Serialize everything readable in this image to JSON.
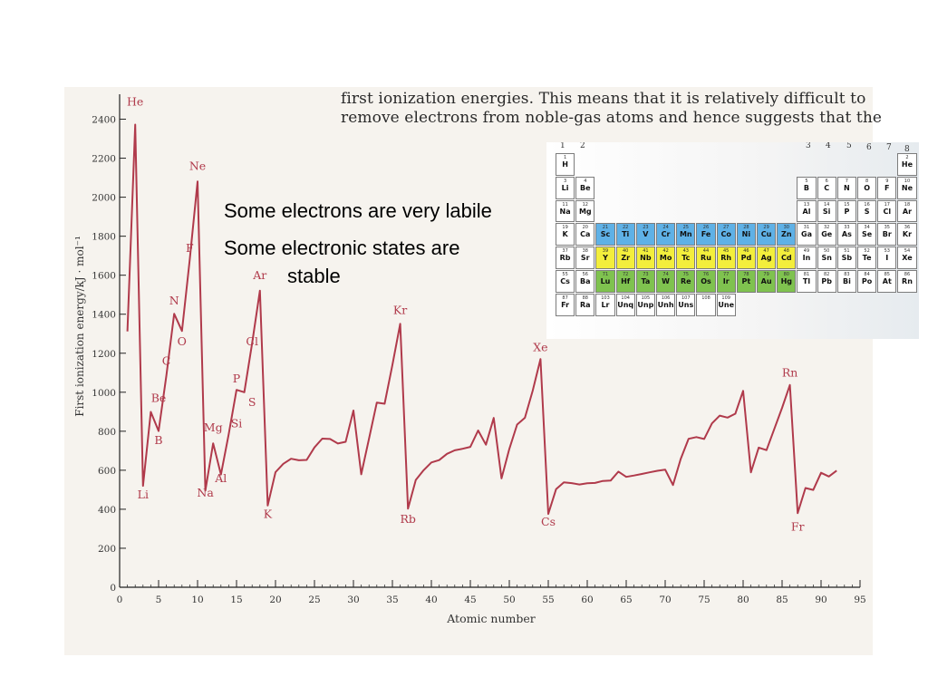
{
  "book_text": {
    "line1": "first ionization energies. This means that it is relatively difficult to",
    "line2": "remove electrons from noble-gas atoms and hence suggests that the"
  },
  "callouts": {
    "labile": "Some electrons are very labile",
    "stable_line1": "Some electronic states are",
    "stable_line2": "stable"
  },
  "chart_data": {
    "type": "line",
    "xlabel": "Atomic number",
    "ylabel": "First ionization energy/kJ · mol⁻¹",
    "xlim": [
      0,
      95
    ],
    "ylim": [
      0,
      2500
    ],
    "x_ticks": [
      0,
      5,
      10,
      15,
      20,
      25,
      30,
      35,
      40,
      45,
      50,
      55,
      60,
      65,
      70,
      75,
      80,
      85,
      90,
      95
    ],
    "y_ticks": [
      0,
      200,
      400,
      600,
      800,
      1000,
      1200,
      1400,
      1600,
      1800,
      2000,
      2200,
      2400
    ],
    "line_color": "#b03a4b",
    "series": [
      {
        "x": [
          1,
          2,
          3,
          4,
          5,
          6,
          7,
          8,
          9,
          10,
          11,
          12,
          13,
          14,
          15,
          16,
          17,
          18,
          19,
          20,
          21,
          22,
          23,
          24,
          25,
          26,
          27,
          28,
          29,
          30,
          31,
          32,
          33,
          34,
          35,
          36,
          37,
          38,
          39,
          40,
          41,
          42,
          43,
          44,
          45,
          46,
          47,
          48,
          49,
          50,
          51,
          52,
          53,
          54,
          55,
          56,
          57,
          58,
          59,
          60,
          61,
          62,
          63,
          64,
          65,
          66,
          67,
          68,
          69,
          70,
          71,
          72,
          73,
          74,
          75,
          76,
          77,
          78,
          79,
          80,
          81,
          82,
          83,
          84,
          85,
          86,
          87,
          88,
          89,
          90,
          91,
          92
        ],
        "values": [
          1312,
          2372,
          520,
          899,
          801,
          1086,
          1402,
          1314,
          1681,
          2081,
          496,
          738,
          578,
          786,
          1012,
          1000,
          1251,
          1521,
          419,
          590,
          633,
          659,
          651,
          653,
          717,
          762,
          760,
          737,
          746,
          906,
          579,
          762,
          947,
          941,
          1140,
          1351,
          403,
          550,
          600,
          640,
          652,
          684,
          702,
          710,
          720,
          804,
          731,
          868,
          558,
          709,
          834,
          869,
          1008,
          1170,
          376,
          503,
          538,
          534,
          527,
          533,
          535,
          545,
          547,
          593,
          566,
          573,
          581,
          589,
          597,
          603,
          524,
          659,
          761,
          770,
          760,
          840,
          880,
          870,
          890,
          1007,
          589,
          716,
          703,
          812,
          920,
          1037,
          380,
          509,
          499,
          587,
          568,
          598
        ]
      }
    ],
    "point_labels": [
      {
        "z": 1,
        "text": "He",
        "dx": 1,
        "y": 2470
      },
      {
        "z": 3,
        "text": "Li",
        "dx": 0,
        "y": 455
      },
      {
        "z": 4,
        "text": "Be",
        "dx": 1,
        "y": 950
      },
      {
        "z": 5,
        "text": "B",
        "dx": 0,
        "y": 735
      },
      {
        "z": 6,
        "text": "C",
        "dx": 0,
        "y": 1140
      },
      {
        "z": 7,
        "text": "N",
        "dx": 0,
        "y": 1450
      },
      {
        "z": 8,
        "text": "O",
        "dx": 0,
        "y": 1240
      },
      {
        "z": 9,
        "text": "F",
        "dx": 0,
        "y": 1720
      },
      {
        "z": 10,
        "text": "Ne",
        "dx": 0,
        "y": 2140
      },
      {
        "z": 11,
        "text": "Na",
        "dx": 0,
        "y": 465
      },
      {
        "z": 12,
        "text": "Mg",
        "dx": 0,
        "y": 800
      },
      {
        "z": 13,
        "text": "Al",
        "dx": 0,
        "y": 540
      },
      {
        "z": 14,
        "text": "Si",
        "dx": 1,
        "y": 820
      },
      {
        "z": 15,
        "text": "P",
        "dx": 0,
        "y": 1050
      },
      {
        "z": 16,
        "text": "S",
        "dx": 1,
        "y": 930
      },
      {
        "z": 17,
        "text": "Cl",
        "dx": 0,
        "y": 1240
      },
      {
        "z": 18,
        "text": "Ar",
        "dx": 0,
        "y": 1580
      },
      {
        "z": 19,
        "text": "K",
        "dx": 0,
        "y": 355
      },
      {
        "z": 36,
        "text": "Kr",
        "dx": 0,
        "y": 1400
      },
      {
        "z": 37,
        "text": "Rb",
        "dx": 0,
        "y": 330
      },
      {
        "z": 54,
        "text": "Xe",
        "dx": 0,
        "y": 1210
      },
      {
        "z": 55,
        "text": "Cs",
        "dx": 0,
        "y": 315
      },
      {
        "z": 86,
        "text": "Rn",
        "dx": 0,
        "y": 1080
      },
      {
        "z": 87,
        "text": "Fr",
        "dx": 0,
        "y": 290
      }
    ]
  },
  "periodic_table": {
    "group_numbers": [
      {
        "text": "1",
        "x": 15,
        "y": 7
      },
      {
        "text": "2",
        "x": 37,
        "y": 7
      },
      {
        "text": "3",
        "x": 286,
        "y": 7
      },
      {
        "text": "4",
        "x": 308,
        "y": 7
      },
      {
        "text": "5",
        "x": 331,
        "y": 7
      },
      {
        "text": "6",
        "x": 353,
        "y": 9
      },
      {
        "text": "7",
        "x": 375,
        "y": 9
      },
      {
        "text": "8",
        "x": 395,
        "y": 11
      }
    ],
    "rows": [
      [
        {
          "c": 0,
          "n": "1",
          "s": "H"
        },
        {
          "c": 17,
          "n": "2",
          "s": "He"
        }
      ],
      [
        {
          "c": 0,
          "n": "3",
          "s": "Li"
        },
        {
          "c": 1,
          "n": "4",
          "s": "Be"
        },
        {
          "c": 12,
          "n": "5",
          "s": "B"
        },
        {
          "c": 13,
          "n": "6",
          "s": "C"
        },
        {
          "c": 14,
          "n": "7",
          "s": "N"
        },
        {
          "c": 15,
          "n": "8",
          "s": "O"
        },
        {
          "c": 16,
          "n": "9",
          "s": "F"
        },
        {
          "c": 17,
          "n": "10",
          "s": "Ne"
        }
      ],
      [
        {
          "c": 0,
          "n": "11",
          "s": "Na"
        },
        {
          "c": 1,
          "n": "12",
          "s": "Mg"
        },
        {
          "c": 12,
          "n": "13",
          "s": "Al"
        },
        {
          "c": 13,
          "n": "14",
          "s": "Si"
        },
        {
          "c": 14,
          "n": "15",
          "s": "P"
        },
        {
          "c": 15,
          "n": "16",
          "s": "S"
        },
        {
          "c": 16,
          "n": "17",
          "s": "Cl"
        },
        {
          "c": 17,
          "n": "18",
          "s": "Ar"
        }
      ],
      [
        {
          "c": 0,
          "n": "19",
          "s": "K"
        },
        {
          "c": 1,
          "n": "20",
          "s": "Ca"
        },
        {
          "c": 2,
          "n": "21",
          "s": "Sc",
          "f": "#5fb1e6"
        },
        {
          "c": 3,
          "n": "22",
          "s": "Ti",
          "f": "#5fb1e6"
        },
        {
          "c": 4,
          "n": "23",
          "s": "V",
          "f": "#5fb1e6"
        },
        {
          "c": 5,
          "n": "24",
          "s": "Cr",
          "f": "#5fb1e6"
        },
        {
          "c": 6,
          "n": "25",
          "s": "Mn",
          "f": "#5fb1e6"
        },
        {
          "c": 7,
          "n": "26",
          "s": "Fe",
          "f": "#5fb1e6"
        },
        {
          "c": 8,
          "n": "27",
          "s": "Co",
          "f": "#5fb1e6"
        },
        {
          "c": 9,
          "n": "28",
          "s": "Ni",
          "f": "#5fb1e6"
        },
        {
          "c": 10,
          "n": "29",
          "s": "Cu",
          "f": "#5fb1e6"
        },
        {
          "c": 11,
          "n": "30",
          "s": "Zn",
          "f": "#5fb1e6"
        },
        {
          "c": 12,
          "n": "31",
          "s": "Ga"
        },
        {
          "c": 13,
          "n": "32",
          "s": "Ge"
        },
        {
          "c": 14,
          "n": "33",
          "s": "As"
        },
        {
          "c": 15,
          "n": "34",
          "s": "Se"
        },
        {
          "c": 16,
          "n": "35",
          "s": "Br"
        },
        {
          "c": 17,
          "n": "36",
          "s": "Kr"
        }
      ],
      [
        {
          "c": 0,
          "n": "37",
          "s": "Rb"
        },
        {
          "c": 1,
          "n": "38",
          "s": "Sr"
        },
        {
          "c": 2,
          "n": "39",
          "s": "Y",
          "f": "#f3ee3c"
        },
        {
          "c": 3,
          "n": "40",
          "s": "Zr",
          "f": "#f3ee3c"
        },
        {
          "c": 4,
          "n": "41",
          "s": "Nb",
          "f": "#f3ee3c"
        },
        {
          "c": 5,
          "n": "42",
          "s": "Mo",
          "f": "#f3ee3c"
        },
        {
          "c": 6,
          "n": "43",
          "s": "Tc",
          "f": "#f3ee3c"
        },
        {
          "c": 7,
          "n": "44",
          "s": "Ru",
          "f": "#f3ee3c"
        },
        {
          "c": 8,
          "n": "45",
          "s": "Rh",
          "f": "#f3ee3c"
        },
        {
          "c": 9,
          "n": "46",
          "s": "Pd",
          "f": "#f3ee3c"
        },
        {
          "c": 10,
          "n": "47",
          "s": "Ag",
          "f": "#f3ee3c"
        },
        {
          "c": 11,
          "n": "48",
          "s": "Cd",
          "f": "#f3ee3c"
        },
        {
          "c": 12,
          "n": "49",
          "s": "In"
        },
        {
          "c": 13,
          "n": "50",
          "s": "Sn"
        },
        {
          "c": 14,
          "n": "51",
          "s": "Sb"
        },
        {
          "c": 15,
          "n": "52",
          "s": "Te"
        },
        {
          "c": 16,
          "n": "53",
          "s": "I"
        },
        {
          "c": 17,
          "n": "54",
          "s": "Xe"
        }
      ],
      [
        {
          "c": 0,
          "n": "55",
          "s": "Cs"
        },
        {
          "c": 1,
          "n": "56",
          "s": "Ba"
        },
        {
          "c": 2,
          "n": "71",
          "s": "Lu",
          "f": "#7fc24f"
        },
        {
          "c": 3,
          "n": "72",
          "s": "Hf",
          "f": "#7fc24f"
        },
        {
          "c": 4,
          "n": "73",
          "s": "Ta",
          "f": "#7fc24f"
        },
        {
          "c": 5,
          "n": "74",
          "s": "W",
          "f": "#7fc24f"
        },
        {
          "c": 6,
          "n": "75",
          "s": "Re",
          "f": "#7fc24f"
        },
        {
          "c": 7,
          "n": "76",
          "s": "Os",
          "f": "#7fc24f"
        },
        {
          "c": 8,
          "n": "77",
          "s": "Ir",
          "f": "#7fc24f"
        },
        {
          "c": 9,
          "n": "78",
          "s": "Pt",
          "f": "#7fc24f"
        },
        {
          "c": 10,
          "n": "79",
          "s": "Au",
          "f": "#7fc24f"
        },
        {
          "c": 11,
          "n": "80",
          "s": "Hg",
          "f": "#7fc24f"
        },
        {
          "c": 12,
          "n": "81",
          "s": "Tl"
        },
        {
          "c": 13,
          "n": "82",
          "s": "Pb"
        },
        {
          "c": 14,
          "n": "83",
          "s": "Bi"
        },
        {
          "c": 15,
          "n": "84",
          "s": "Po"
        },
        {
          "c": 16,
          "n": "85",
          "s": "At"
        },
        {
          "c": 17,
          "n": "86",
          "s": "Rn"
        }
      ],
      [
        {
          "c": 0,
          "n": "87",
          "s": "Fr"
        },
        {
          "c": 1,
          "n": "88",
          "s": "Ra"
        },
        {
          "c": 2,
          "n": "103",
          "s": "Lr"
        },
        {
          "c": 3,
          "n": "104",
          "s": "Unq"
        },
        {
          "c": 4,
          "n": "105",
          "s": "Unp"
        },
        {
          "c": 5,
          "n": "106",
          "s": "Unh"
        },
        {
          "c": 6,
          "n": "107",
          "s": "Uns"
        },
        {
          "c": 7,
          "n": "108",
          "s": ""
        },
        {
          "c": 8,
          "n": "109",
          "s": "Une"
        }
      ]
    ]
  }
}
